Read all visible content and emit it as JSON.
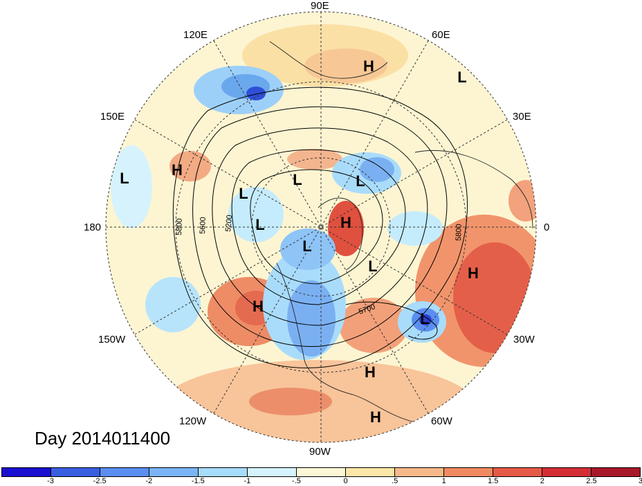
{
  "title": "Day 2014011400",
  "longitude_labels": {
    "e90": "90E",
    "e60": "60E",
    "e30": "30E",
    "zero": "0",
    "w30": "30W",
    "w60": "60W",
    "w90": "90W",
    "w120": "120W",
    "w150": "150W",
    "d180": "180",
    "e150": "150E",
    "e120": "120E"
  },
  "contour_labels": [
    "5800",
    "5600",
    "5200",
    "5800",
    "5700"
  ],
  "pressure_centers": [
    {
      "type": "H",
      "label": "H"
    },
    {
      "type": "L",
      "label": "L"
    },
    {
      "type": "L",
      "label": "L"
    },
    {
      "type": "H",
      "label": "H"
    },
    {
      "type": "L",
      "label": "L"
    },
    {
      "type": "L",
      "label": "L"
    },
    {
      "type": "L",
      "label": "L"
    },
    {
      "type": "L",
      "label": "L"
    },
    {
      "type": "H",
      "label": "H"
    },
    {
      "type": "L",
      "label": "L"
    },
    {
      "type": "L",
      "label": "L"
    },
    {
      "type": "H",
      "label": "H"
    },
    {
      "type": "H",
      "label": "H"
    },
    {
      "type": "L",
      "label": "L"
    },
    {
      "type": "H",
      "label": "H"
    },
    {
      "type": "H",
      "label": "H"
    }
  ],
  "colorbar": {
    "colors": [
      "#1a0fd0",
      "#3a5ee0",
      "#5a8ef0",
      "#7bb4f5",
      "#a7dcfb",
      "#d4f3fd",
      "#fdf7d6",
      "#fce6a8",
      "#f8b98a",
      "#f08a62",
      "#e55a47",
      "#d32e35",
      "#a8182a"
    ],
    "tick_labels": [
      "-3",
      "-2.5",
      "-2",
      "-1.5",
      "-1",
      "-.5",
      "0",
      ".5",
      "1",
      "1.5",
      "2",
      "2.5",
      "3"
    ]
  }
}
